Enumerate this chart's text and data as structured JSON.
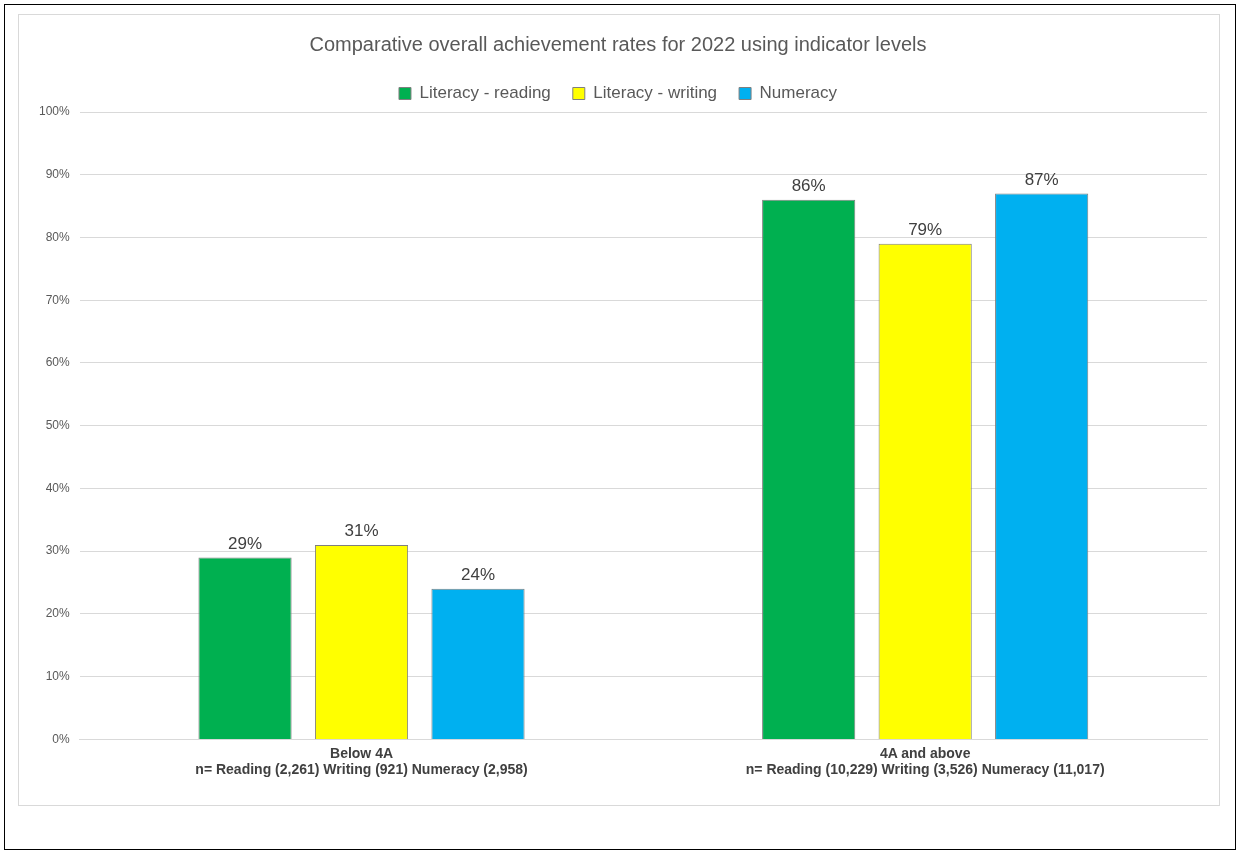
{
  "chart_data": {
    "type": "bar",
    "title": "Comparative overall achievement rates for 2022 using indicator levels",
    "categories": [
      "Below 4A\nn= Reading (2,261) Writing (921) Numeracy (2,958)",
      "4A and above\nn= Reading (10,229) Writing (3,526) Numeracy (11,017)"
    ],
    "series": [
      {
        "name": "Literacy - reading",
        "color": "#00b050",
        "values": [
          29,
          86
        ],
        "value_labels": [
          "29%",
          "86%"
        ]
      },
      {
        "name": "Literacy - writing",
        "color": "#ffff00",
        "values": [
          31,
          79
        ],
        "value_labels": [
          "31%",
          "79%"
        ]
      },
      {
        "name": "Numeracy",
        "color": "#00b0f0",
        "values": [
          24,
          87
        ],
        "value_labels": [
          "24%",
          "87%"
        ]
      }
    ],
    "ylim": [
      0,
      100
    ],
    "yticks": [
      {
        "value": 0,
        "label": "0%"
      },
      {
        "value": 10,
        "label": "10%"
      },
      {
        "value": 20,
        "label": "20%"
      },
      {
        "value": 30,
        "label": "30%"
      },
      {
        "value": 40,
        "label": "40%"
      },
      {
        "value": 50,
        "label": "50%"
      },
      {
        "value": 60,
        "label": "60%"
      },
      {
        "value": 70,
        "label": "70%"
      },
      {
        "value": 80,
        "label": "80%"
      },
      {
        "value": 90,
        "label": "90%"
      },
      {
        "value": 100,
        "label": "100%"
      }
    ],
    "grid": "y",
    "legend": "top"
  }
}
